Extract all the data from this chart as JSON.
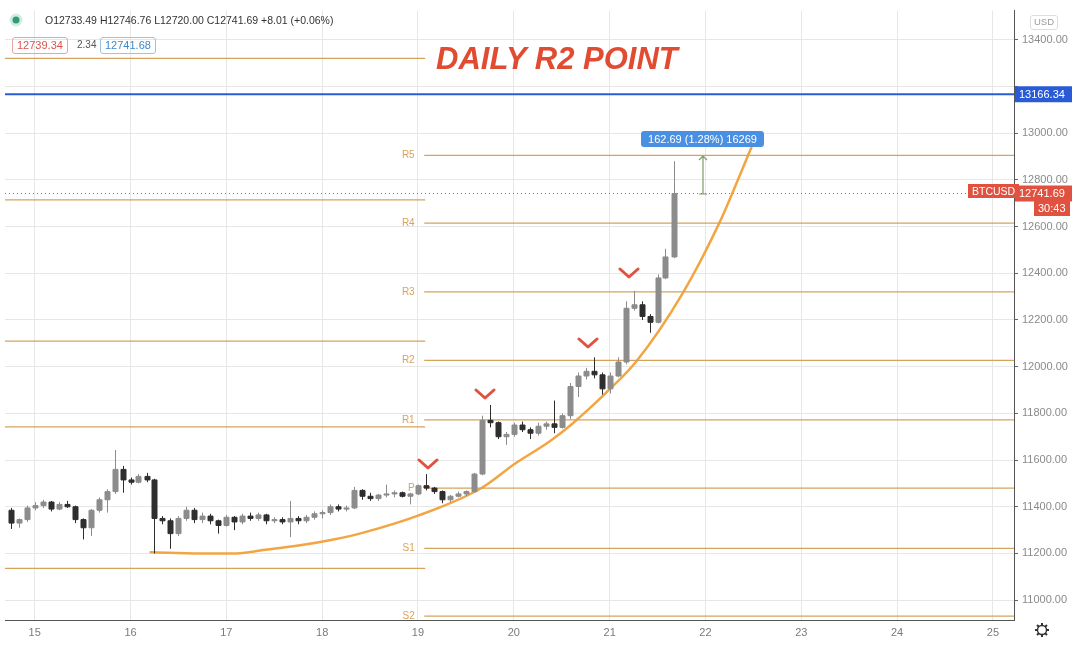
{
  "chart_data": {
    "type": "candlestick",
    "title": "DAILY R2 POINT",
    "xlim": [
      14.69,
      25.22
    ],
    "xticks": [
      15,
      16,
      17,
      18,
      19,
      20,
      21,
      22,
      23,
      24,
      25
    ],
    "ylim": [
      10915,
      13525
    ],
    "yticks": [
      {
        "value": 11000,
        "label": "11000.00"
      },
      {
        "value": 11200,
        "label": "11200.00"
      },
      {
        "value": 11400,
        "label": "11400.00"
      },
      {
        "value": 11600,
        "label": "11600.00"
      },
      {
        "value": 11800,
        "label": "11800.00"
      },
      {
        "value": 12000,
        "label": "12000.00"
      },
      {
        "value": 12200,
        "label": "12200.00"
      },
      {
        "value": 12400,
        "label": "12400.00"
      },
      {
        "value": 12600,
        "label": "12600.00"
      },
      {
        "value": 12800,
        "label": "12800.00"
      },
      {
        "value": 13000,
        "label": "13000.00"
      },
      {
        "value": 13200,
        "label": null
      },
      {
        "value": 13400,
        "label": "13400.00"
      }
    ],
    "grid": true,
    "series": [
      {
        "type": "candlestick",
        "colors": [
          "#2e2e2e",
          "#8c8c8c",
          "#8c8c8c",
          "#8c8c8c",
          "#8c8c8c",
          "#2e2e2e",
          "#8c8c8c",
          "#2e2e2e",
          "#2e2e2e",
          "#2e2e2e",
          "#8c8c8c",
          "#8c8c8c",
          "#8c8c8c",
          "#8c8c8c",
          "#2e2e2e",
          "#2e2e2e",
          "#8c8c8c",
          "#2e2e2e",
          "#2e2e2e",
          "#2e2e2e",
          "#2e2e2e",
          "#8c8c8c",
          "#8c8c8c",
          "#2e2e2e",
          "#8c8c8c",
          "#2e2e2e",
          "#2e2e2e",
          "#8c8c8c",
          "#2e2e2e",
          "#8c8c8c",
          "#2e2e2e",
          "#8c8c8c",
          "#2e2e2e",
          "#8c8c8c",
          "#2e2e2e",
          "#8c8c8c",
          "#2e2e2e",
          "#8c8c8c",
          "#8c8c8c",
          "#8c8c8c",
          "#8c8c8c",
          "#2e2e2e",
          "#8c8c8c",
          "#8c8c8c",
          "#2e2e2e",
          "#2e2e2e",
          "#8c8c8c",
          "#8c8c8c",
          "#8c8c8c",
          "#2e2e2e",
          "#8c8c8c",
          "#8c8c8c",
          "#2e2e2e",
          "#2e2e2e",
          "#2e2e2e",
          "#8c8c8c",
          "#8c8c8c",
          "#8c8c8c",
          "#8c8c8c",
          "#8c8c8c",
          "#2e2e2e",
          "#2e2e2e",
          "#8c8c8c",
          "#8c8c8c",
          "#2e2e2e",
          "#2e2e2e",
          "#8c8c8c",
          "#8c8c8c",
          "#2e2e2e",
          "#8c8c8c",
          "#8c8c8c",
          "#8c8c8c",
          "#8c8c8c",
          "#2e2e2e",
          "#2e2e2e",
          "#8c8c8c",
          "#8c8c8c",
          "#8c8c8c",
          "#8c8c8c",
          "#2e2e2e",
          "#2e2e2e",
          "#8c8c8c",
          "#8c8c8c",
          "#8c8c8c"
        ],
        "x": [
          14.75,
          14.833,
          14.917,
          15.0,
          15.083,
          15.167,
          15.25,
          15.333,
          15.417,
          15.5,
          15.583,
          15.667,
          15.75,
          15.833,
          15.917,
          16.0,
          16.083,
          16.167,
          16.25,
          16.333,
          16.417,
          16.5,
          16.583,
          16.667,
          16.75,
          16.833,
          16.917,
          17.0,
          17.083,
          17.167,
          17.25,
          17.333,
          17.417,
          17.5,
          17.583,
          17.667,
          17.75,
          17.833,
          17.917,
          18.0,
          18.083,
          18.167,
          18.25,
          18.333,
          18.417,
          18.5,
          18.583,
          18.667,
          18.75,
          18.833,
          18.917,
          19.0,
          19.083,
          19.167,
          19.25,
          19.333,
          19.417,
          19.5,
          19.583,
          19.667,
          19.75,
          19.833,
          19.917,
          20.0,
          20.083,
          20.167,
          20.25,
          20.333,
          20.417,
          20.5,
          20.583,
          20.667,
          20.75,
          20.833,
          20.917,
          21.0,
          21.083,
          21.167,
          21.25,
          21.333,
          21.417,
          21.5,
          21.583,
          21.667
        ],
        "ohlc": [
          [
            11385,
            11395,
            11305,
            11330
          ],
          [
            11330,
            11350,
            11310,
            11345
          ],
          [
            11345,
            11405,
            11335,
            11395
          ],
          [
            11395,
            11420,
            11385,
            11405
          ],
          [
            11405,
            11430,
            11395,
            11420
          ],
          [
            11420,
            11425,
            11380,
            11390
          ],
          [
            11390,
            11420,
            11385,
            11410
          ],
          [
            11410,
            11425,
            11395,
            11400
          ],
          [
            11400,
            11405,
            11330,
            11345
          ],
          [
            11345,
            11350,
            11260,
            11310
          ],
          [
            11310,
            11390,
            11275,
            11385
          ],
          [
            11385,
            11440,
            11375,
            11430
          ],
          [
            11430,
            11475,
            11375,
            11465
          ],
          [
            11465,
            11643,
            11455,
            11560
          ],
          [
            11560,
            11575,
            11460,
            11515
          ],
          [
            11515,
            11525,
            11495,
            11505
          ],
          [
            11505,
            11540,
            11500,
            11530
          ],
          [
            11530,
            11545,
            11505,
            11515
          ],
          [
            11515,
            11520,
            11200,
            11350
          ],
          [
            11350,
            11360,
            11325,
            11340
          ],
          [
            11340,
            11350,
            11220,
            11285
          ],
          [
            11285,
            11360,
            11275,
            11350
          ],
          [
            11350,
            11400,
            11340,
            11385
          ],
          [
            11385,
            11395,
            11330,
            11345
          ],
          [
            11345,
            11375,
            11330,
            11360
          ],
          [
            11360,
            11370,
            11325,
            11340
          ],
          [
            11340,
            11345,
            11285,
            11320
          ],
          [
            11320,
            11365,
            11315,
            11355
          ],
          [
            11355,
            11360,
            11300,
            11335
          ],
          [
            11335,
            11370,
            11325,
            11360
          ],
          [
            11360,
            11375,
            11340,
            11350
          ],
          [
            11350,
            11375,
            11340,
            11365
          ],
          [
            11365,
            11370,
            11325,
            11340
          ],
          [
            11340,
            11355,
            11330,
            11345
          ],
          [
            11345,
            11355,
            11325,
            11335
          ],
          [
            11335,
            11425,
            11270,
            11350
          ],
          [
            11350,
            11360,
            11325,
            11340
          ],
          [
            11340,
            11365,
            11330,
            11355
          ],
          [
            11355,
            11380,
            11345,
            11370
          ],
          [
            11370,
            11385,
            11350,
            11375
          ],
          [
            11375,
            11410,
            11365,
            11400
          ],
          [
            11400,
            11410,
            11380,
            11390
          ],
          [
            11390,
            11405,
            11380,
            11395
          ],
          [
            11395,
            11485,
            11390,
            11470
          ],
          [
            11470,
            11475,
            11430,
            11445
          ],
          [
            11445,
            11460,
            11425,
            11435
          ],
          [
            11435,
            11455,
            11425,
            11450
          ],
          [
            11450,
            11495,
            11440,
            11455
          ],
          [
            11455,
            11470,
            11440,
            11460
          ],
          [
            11460,
            11465,
            11440,
            11445
          ],
          [
            11445,
            11460,
            11410,
            11455
          ],
          [
            11455,
            11495,
            11450,
            11490
          ],
          [
            11490,
            11540,
            11470,
            11480
          ],
          [
            11480,
            11485,
            11455,
            11465
          ],
          [
            11465,
            11470,
            11415,
            11430
          ],
          [
            11430,
            11450,
            11420,
            11445
          ],
          [
            11445,
            11465,
            11440,
            11455
          ],
          [
            11455,
            11470,
            11445,
            11465
          ],
          [
            11465,
            11545,
            11460,
            11540
          ],
          [
            11540,
            11790,
            11535,
            11770
          ],
          [
            11770,
            11836,
            11740,
            11760
          ],
          [
            11760,
            11765,
            11690,
            11700
          ],
          [
            11700,
            11720,
            11665,
            11710
          ],
          [
            11710,
            11760,
            11700,
            11750
          ],
          [
            11750,
            11765,
            11720,
            11730
          ],
          [
            11730,
            11740,
            11690,
            11715
          ],
          [
            11715,
            11760,
            11705,
            11745
          ],
          [
            11745,
            11765,
            11730,
            11755
          ],
          [
            11755,
            11855,
            11715,
            11740
          ],
          [
            11740,
            11800,
            11735,
            11790
          ],
          [
            11790,
            11930,
            11775,
            11915
          ],
          [
            11915,
            11975,
            11870,
            11960
          ],
          [
            11960,
            11995,
            11945,
            11980
          ],
          [
            11980,
            12040,
            11950,
            11965
          ],
          [
            11965,
            11975,
            11880,
            11905
          ],
          [
            11905,
            11975,
            11885,
            11960
          ],
          [
            11960,
            12040,
            11955,
            12020
          ],
          [
            12020,
            12280,
            12010,
            12250
          ],
          [
            12250,
            12325,
            12240,
            12265
          ],
          [
            12265,
            12280,
            12200,
            12215
          ],
          [
            12215,
            12225,
            12145,
            12190
          ],
          [
            12190,
            12395,
            12185,
            12380
          ],
          [
            12380,
            12505,
            12375,
            12470
          ],
          [
            12470,
            12880,
            12465,
            12741.69
          ]
        ]
      },
      {
        "type": "line",
        "color": "#d6a35c",
        "x": [
          14.69,
          19.07
        ],
        "values": [
          13320,
          13320
        ]
      },
      {
        "type": "line",
        "color": "#d6a35c",
        "x": [
          14.69,
          19.07
        ],
        "values": [
          12714,
          12714
        ]
      },
      {
        "type": "line",
        "color": "#d6a35c",
        "x": [
          14.69,
          19.07
        ],
        "values": [
          12109,
          12109
        ]
      },
      {
        "type": "line",
        "color": "#d6a35c",
        "x": [
          14.69,
          19.07
        ],
        "values": [
          11742,
          11742
        ]
      },
      {
        "type": "line",
        "color": "#d6a35c",
        "x": [
          14.69,
          19.07
        ],
        "values": [
          11136,
          11136
        ]
      },
      {
        "type": "line",
        "name": "R5",
        "color": "#d6a35c",
        "x": [
          19.07,
          25.22
        ],
        "values": [
          12905,
          12905
        ]
      },
      {
        "type": "line",
        "name": "R4",
        "color": "#d6a35c",
        "x": [
          19.07,
          25.22
        ],
        "values": [
          12615,
          12615
        ]
      },
      {
        "type": "line",
        "name": "R3",
        "color": "#d6a35c",
        "x": [
          19.07,
          25.22
        ],
        "values": [
          12320,
          12320
        ]
      },
      {
        "type": "line",
        "name": "R2",
        "color": "#d6a35c",
        "x": [
          19.07,
          25.22
        ],
        "values": [
          12027,
          12027
        ]
      },
      {
        "type": "line",
        "name": "R1",
        "color": "#d6a35c",
        "x": [
          19.07,
          25.22
        ],
        "values": [
          11772,
          11772
        ]
      },
      {
        "type": "line",
        "name": "P",
        "color": "#d6a35c",
        "x": [
          19.07,
          25.22
        ],
        "values": [
          11480,
          11480
        ]
      },
      {
        "type": "line",
        "name": "S1",
        "color": "#d6a35c",
        "x": [
          19.07,
          25.22
        ],
        "values": [
          11222,
          11222
        ]
      },
      {
        "type": "line",
        "name": "S2",
        "color": "#d6a35c",
        "x": [
          19.07,
          25.22
        ],
        "values": [
          10932,
          10932
        ]
      },
      {
        "type": "line",
        "color": "#f2a541",
        "x": [
          16.21,
          16.73,
          17.07,
          17.43,
          17.77,
          18.12,
          18.4,
          19.0,
          19.65,
          20.01,
          20.38,
          20.62,
          20.98,
          21.28,
          21.76,
          22.15,
          22.36,
          22.48
        ],
        "values": [
          11205,
          11200,
          11200,
          11217,
          11235,
          11260,
          11286,
          11362,
          11477,
          11584,
          11682,
          11759,
          11895,
          12023,
          12313,
          12620,
          12821,
          12940
        ]
      }
    ],
    "ref_lines": [
      {
        "axis": "y",
        "value": 13166.34,
        "label": "13166.34",
        "color": "#2a5bd7"
      },
      {
        "axis": "y",
        "value": 12741.69,
        "label": "12741.69",
        "color": "#e0523f",
        "line_style": "dotted"
      }
    ],
    "annotations": [
      "O12733.49 H12746.76 L12720.00 C12741.69 +8.01 (+0.06%)",
      "12739.34",
      "2.34",
      "12741.68",
      "USD",
      "BTCUSD",
      "30:43",
      {
        "text": "162.69 (1.28%) 16269",
        "x": 21.97,
        "y": 12904.38
      }
    ]
  }
}
